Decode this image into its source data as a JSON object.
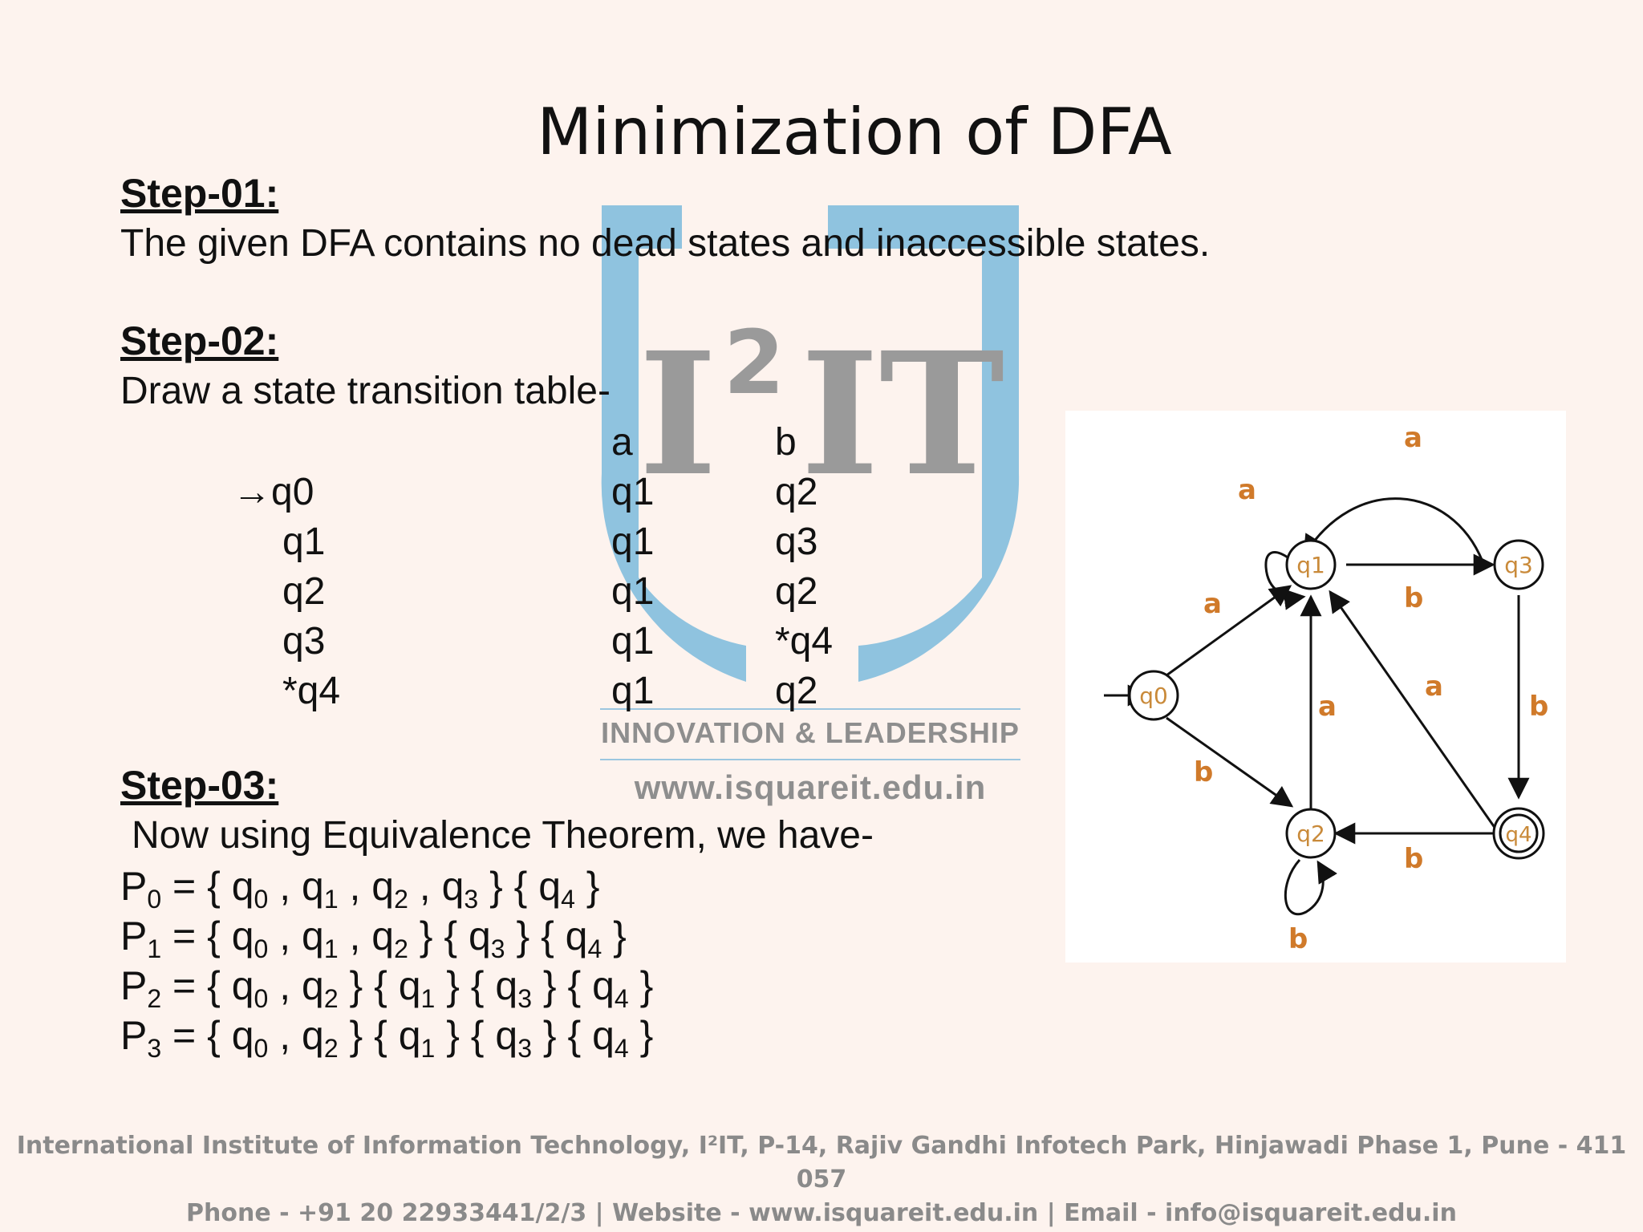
{
  "title": "Minimization of DFA",
  "step1": {
    "heading": "Step-01:",
    "text": "The given DFA contains no dead states and inaccessible states."
  },
  "step2": {
    "heading": "Step-02:",
    "text": "Draw a state transition table-"
  },
  "table": {
    "headers": [
      "a",
      "b"
    ],
    "rows": [
      {
        "state": "→q0",
        "a": "q1",
        "b": "q2"
      },
      {
        "state": "q1",
        "a": "q1",
        "b": "q3"
      },
      {
        "state": "q2",
        "a": "q1",
        "b": "q2"
      },
      {
        "state": "q3",
        "a": "q1",
        "b": "*q4"
      },
      {
        "state": "*q4",
        "a": "q1",
        "b": "q2"
      }
    ]
  },
  "step3": {
    "heading": "Step-03:",
    "text": "Now using Equivalence Theorem, we have-"
  },
  "partitions": [
    {
      "label": "P",
      "sub": "0",
      "groups": [
        [
          "0",
          "1",
          "2",
          "3"
        ],
        [
          "4"
        ]
      ]
    },
    {
      "label": "P",
      "sub": "1",
      "groups": [
        [
          "0",
          "1",
          "2"
        ],
        [
          "3"
        ],
        [
          "4"
        ]
      ]
    },
    {
      "label": "P",
      "sub": "2",
      "groups": [
        [
          "0",
          "2"
        ],
        [
          "1"
        ],
        [
          "3"
        ],
        [
          "4"
        ]
      ]
    },
    {
      "label": "P",
      "sub": "3",
      "groups": [
        [
          "0",
          "2"
        ],
        [
          "1"
        ],
        [
          "3"
        ],
        [
          "4"
        ]
      ]
    }
  ],
  "watermark": {
    "logo_text": "I",
    "logo_sup": "2",
    "logo_text2": "IT",
    "tagline": "INNOVATION & LEADERSHIP",
    "url": "www.isquareit.edu.in",
    "colors": {
      "shield": "#8fc3df",
      "letters": "#9a9a9a"
    }
  },
  "diagram": {
    "states": {
      "q0": "q0",
      "q1": "q1",
      "q2": "q2",
      "q3": "q3",
      "q4": "q4"
    },
    "labels": {
      "q1_self": "a",
      "q3_q1": "a",
      "q0_q1": "a",
      "q1_q3": "b",
      "q2_q1": "a",
      "q4_q1": "a",
      "q3_q4": "b",
      "q0_q2": "b",
      "q4_q2": "b",
      "q2_self": "b"
    },
    "colors": {
      "label": "#d07a2a",
      "state_text": "#c98a3a"
    }
  },
  "footer": {
    "line1": "International Institute of Information Technology, I²IT, P-14, Rajiv Gandhi Infotech Park, Hinjawadi Phase 1, Pune - 411 057",
    "line2": "Phone - +91 20 22933441/2/3 | Website - www.isquareit.edu.in | Email - info@isquareit.edu.in"
  }
}
